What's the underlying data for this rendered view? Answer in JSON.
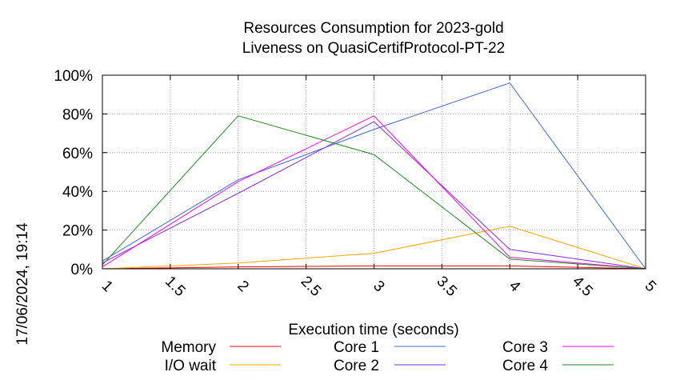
{
  "chart_data": {
    "type": "line",
    "title": "Resources Consumption for 2023-gold",
    "subtitle": "Liveness on QuasiCertifProtocol-PT-22",
    "xlabel": "Execution time (seconds)",
    "ylabel": "",
    "side_label": "17/06/2024, 19:14",
    "x_ticks": [
      "1",
      "1.5",
      "2",
      "2.5",
      "3",
      "3.5",
      "4",
      "4.5",
      "5"
    ],
    "y_ticks": [
      "0%",
      "20%",
      "40%",
      "60%",
      "80%",
      "100%"
    ],
    "xlim": [
      1,
      5
    ],
    "ylim": [
      0,
      100
    ],
    "grid": true,
    "legend_position": "bottom",
    "x": [
      1,
      2,
      3,
      4,
      5
    ],
    "series": [
      {
        "name": "Memory",
        "color": "#ff0000",
        "values": [
          0,
          1,
          1.5,
          1.5,
          0
        ]
      },
      {
        "name": "I/O wait",
        "color": "#ffa500",
        "values": [
          0,
          3,
          8,
          22,
          0
        ]
      },
      {
        "name": "Core 1",
        "color": "#4169e1",
        "values": [
          4,
          46,
          72,
          96,
          0
        ]
      },
      {
        "name": "Core 2",
        "color": "#8a2be2",
        "values": [
          3,
          39,
          76,
          10,
          0
        ]
      },
      {
        "name": "Core 3",
        "color": "#ff00ff",
        "values": [
          1,
          45,
          79,
          6,
          0
        ]
      },
      {
        "name": "Core 4",
        "color": "#228b22",
        "values": [
          2,
          79,
          59,
          5,
          0
        ]
      }
    ]
  }
}
